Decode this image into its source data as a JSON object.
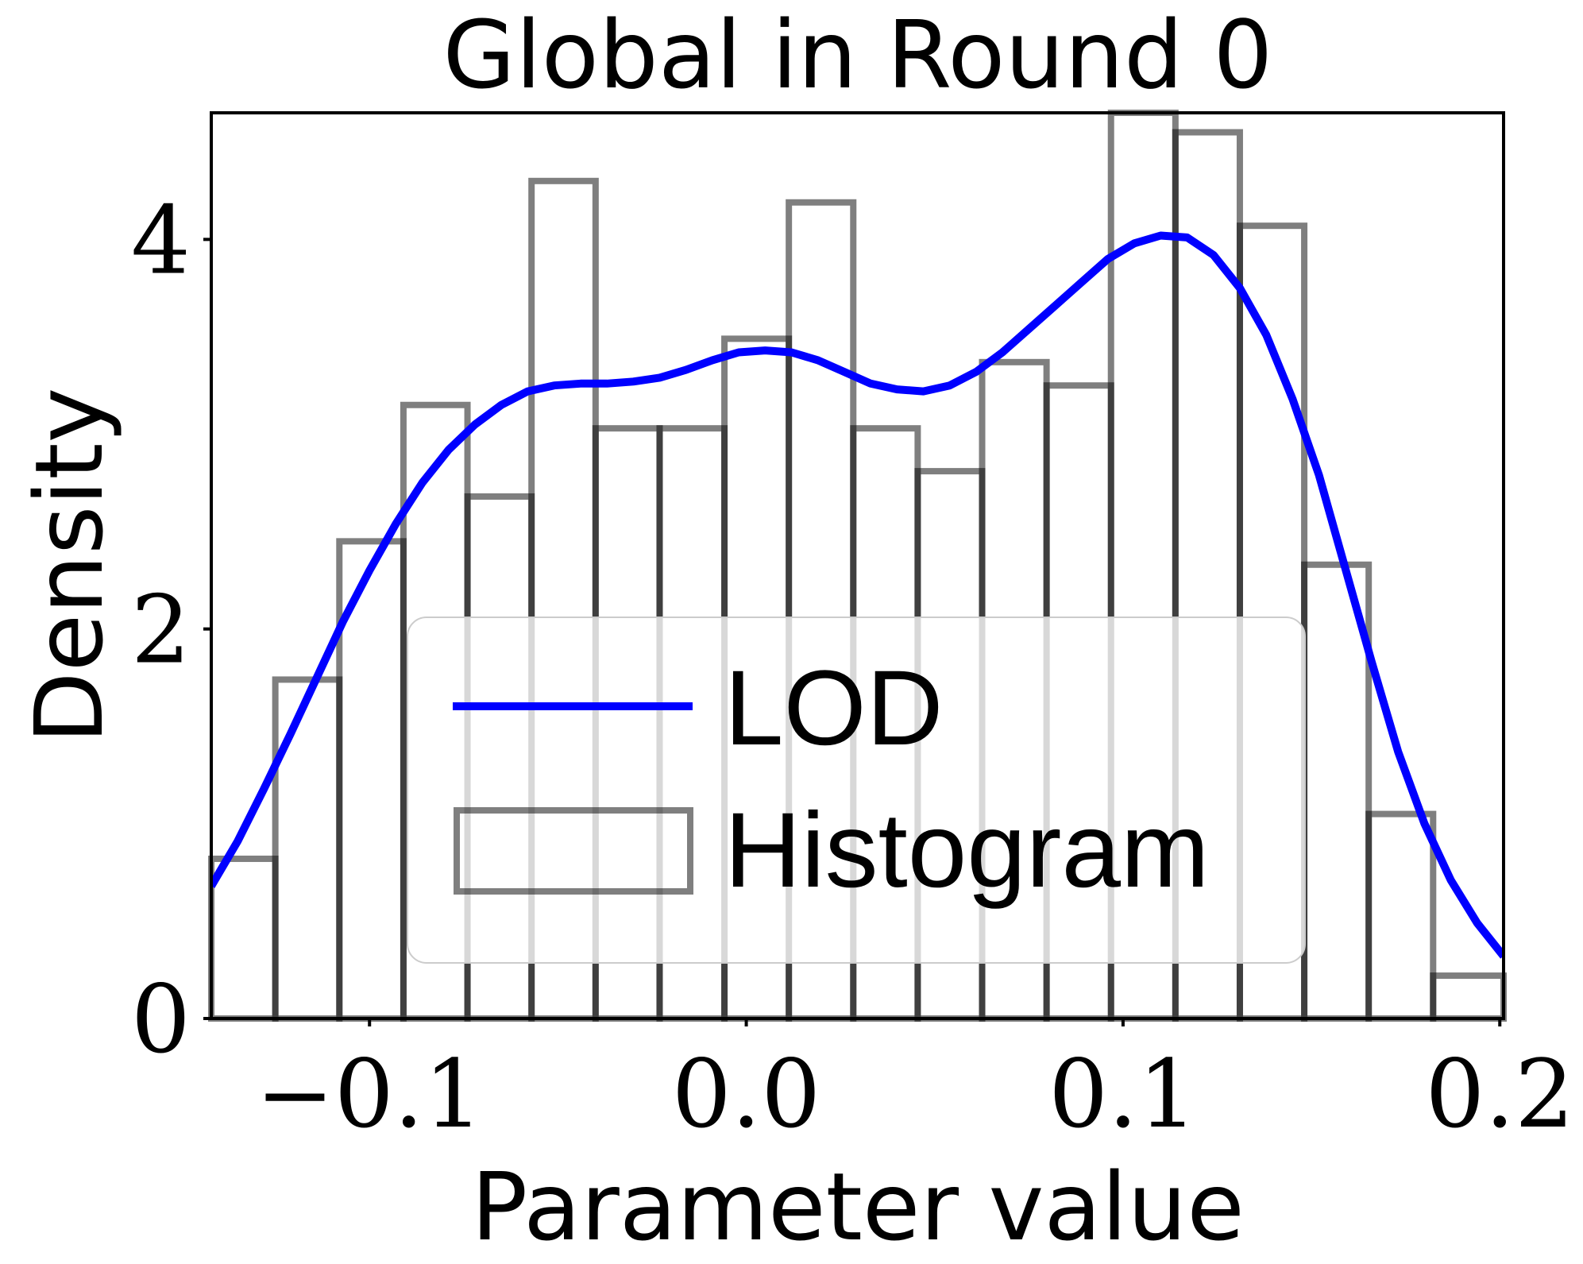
{
  "chart_data": {
    "type": "histogram",
    "title": "Global in Round 0",
    "xlabel": "Parameter value",
    "ylabel": "Density",
    "xlim": [
      -0.142,
      0.201
    ],
    "ylim": [
      0,
      4.65
    ],
    "xticks": [
      -0.1,
      0.0,
      0.1,
      0.2
    ],
    "xtick_labels": [
      "−0.1",
      "0.0",
      "0.1",
      "0.2"
    ],
    "yticks": [
      0,
      2,
      4
    ],
    "ytick_labels": [
      "0",
      "2",
      "4"
    ],
    "grid": false,
    "legend": {
      "placement": "center",
      "entries": [
        {
          "label": "LOD",
          "kind": "line",
          "color": "#0000ff"
        },
        {
          "label": "Histogram",
          "kind": "bar",
          "color": "#808080"
        }
      ]
    },
    "histogram": {
      "name": "Histogram",
      "color": "#808080",
      "bin_edges": [
        -0.142,
        -0.125,
        -0.108,
        -0.091,
        -0.074,
        -0.057,
        -0.04,
        -0.023,
        -0.0058,
        0.0113,
        0.0284,
        0.0455,
        0.0626,
        0.0797,
        0.0968,
        0.1139,
        0.131,
        0.1481,
        0.1652,
        0.1823,
        0.201
      ],
      "densities": [
        0.82,
        1.74,
        2.45,
        3.15,
        2.68,
        4.3,
        3.03,
        3.03,
        3.49,
        4.19,
        3.03,
        2.81,
        3.37,
        3.25,
        4.65,
        4.55,
        4.07,
        2.33,
        1.05,
        0.22
      ]
    },
    "series": [
      {
        "name": "LOD",
        "type": "line",
        "color": "#0000ff",
        "x": [
          -0.142,
          -0.135,
          -0.128,
          -0.121,
          -0.114,
          -0.107,
          -0.1,
          -0.093,
          -0.086,
          -0.079,
          -0.072,
          -0.065,
          -0.058,
          -0.051,
          -0.044,
          -0.037,
          -0.03,
          -0.023,
          -0.016,
          -0.009,
          -0.002,
          0.005,
          0.012,
          0.019,
          0.026,
          0.033,
          0.04,
          0.047,
          0.054,
          0.061,
          0.068,
          0.075,
          0.082,
          0.089,
          0.096,
          0.103,
          0.11,
          0.117,
          0.124,
          0.131,
          0.138,
          0.145,
          0.152,
          0.159,
          0.166,
          0.173,
          0.18,
          0.187,
          0.194,
          0.201
        ],
        "y": [
          0.68,
          0.91,
          1.18,
          1.46,
          1.75,
          2.04,
          2.3,
          2.54,
          2.75,
          2.92,
          3.05,
          3.15,
          3.22,
          3.25,
          3.26,
          3.26,
          3.27,
          3.29,
          3.33,
          3.38,
          3.42,
          3.43,
          3.42,
          3.38,
          3.32,
          3.26,
          3.23,
          3.22,
          3.25,
          3.32,
          3.42,
          3.54,
          3.66,
          3.78,
          3.9,
          3.98,
          4.02,
          4.01,
          3.92,
          3.75,
          3.51,
          3.18,
          2.79,
          2.31,
          1.83,
          1.37,
          1.0,
          0.71,
          0.49,
          0.32
        ]
      }
    ]
  }
}
